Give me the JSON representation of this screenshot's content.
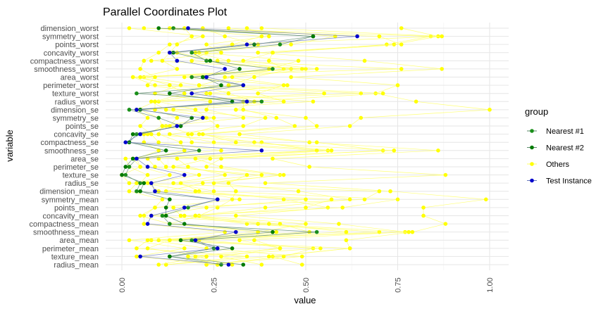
{
  "chart_data": {
    "type": "line",
    "title": "Parallel Coordinates Plot",
    "xlabel": "value",
    "ylabel": "variable",
    "xlim": [
      0,
      1
    ],
    "x_ticks": [
      "0.00",
      "0.25",
      "0.50",
      "0.75",
      "1.00"
    ],
    "grid": true,
    "legend_placement": "right",
    "legend_title": "group",
    "variables": [
      "dimension_worst",
      "symmetry_worst",
      "points_worst",
      "concavity_worst",
      "compactness_worst",
      "smoothness_worst",
      "area_worst",
      "perimeter_worst",
      "texture_worst",
      "radius_worst",
      "dimension_se",
      "symmetry_se",
      "points_se",
      "concavity_se",
      "compactness_se",
      "smoothness_se",
      "area_se",
      "perimeter_se",
      "texture_se",
      "radius_se",
      "dimension_mean",
      "symmetry_mean",
      "points_mean",
      "concavity_mean",
      "compactness_mean",
      "smoothness_mean",
      "area_mean",
      "perimeter_mean",
      "texture_mean",
      "radius_mean"
    ],
    "series": [
      {
        "name": "Nearest #1",
        "color": "#1a8f1a",
        "values": [
          0.14,
          0.52,
          0.43,
          0.19,
          0.23,
          0.41,
          0.19,
          0.33,
          0.04,
          0.38,
          0.02,
          0.1,
          0.16,
          0.04,
          0.02,
          0.21,
          0.04,
          0.02,
          0.01,
          0.05,
          0.04,
          0.26,
          0.18,
          0.11,
          0.13,
          0.53,
          0.19,
          0.25,
          0.13,
          0.27
        ]
      },
      {
        "name": "Nearest #2",
        "color": "#007a00",
        "values": [
          0.1,
          0.52,
          0.36,
          0.14,
          0.24,
          0.32,
          0.22,
          0.27,
          0.13,
          0.3,
          0.05,
          0.19,
          0.16,
          0.03,
          0.02,
          0.12,
          0.03,
          0.01,
          0.0,
          0.06,
          0.05,
          0.13,
          0.12,
          0.12,
          0.17,
          0.41,
          0.16,
          0.3,
          0.13,
          0.33
        ]
      },
      {
        "name": "Test Instance",
        "color": "#0000cc",
        "values": [
          0.18,
          0.64,
          0.34,
          0.13,
          0.15,
          0.28,
          0.23,
          0.33,
          0.19,
          0.34,
          0.04,
          0.22,
          0.15,
          0.05,
          0.01,
          0.38,
          0.04,
          0.07,
          0.17,
          0.08,
          0.09,
          0.26,
          0.17,
          0.08,
          0.07,
          0.31,
          0.2,
          0.26,
          0.05,
          0.29
        ]
      }
    ],
    "others": {
      "name": "Others",
      "color": "#ffff00",
      "values": [
        [
          0.14,
          0.84,
          0.72,
          0.41,
          0.4,
          0.44,
          0.28,
          0.45,
          0.23,
          0.52,
          0.14,
          0.39,
          0.33,
          0.13,
          0.25,
          0.56,
          0.1,
          0.12,
          0.38,
          0.16,
          0.21,
          0.44,
          0.56,
          0.31,
          0.59,
          0.77,
          0.32,
          0.43,
          0.27,
          0.38
        ],
        [
          0.76,
          0.86,
          0.74,
          0.37,
          0.66,
          0.87,
          0.46,
          0.75,
          0.69,
          0.8,
          1.0,
          0.65,
          0.62,
          0.32,
          0.51,
          0.86,
          0.41,
          0.51,
          0.88,
          0.39,
          0.73,
          0.99,
          0.82,
          0.82,
          0.88,
          0.79,
          0.61,
          0.62,
          0.41,
          0.49
        ],
        [
          0.38,
          0.87,
          0.3,
          0.23,
          0.19,
          0.5,
          0.06,
          0.21,
          0.65,
          0.1,
          0.2,
          0.23,
          0.26,
          0.18,
          0.19,
          0.53,
          0.03,
          0.05,
          0.0,
          0.02,
          0.7,
          0.66,
          0.14,
          0.16,
          0.43,
          0.51,
          0.08,
          0.23,
          0.49,
          0.23
        ],
        [
          0.29,
          0.58,
          0.46,
          0.21,
          0.48,
          0.4,
          0.17,
          0.44,
          0.37,
          0.44,
          0.05,
          0.1,
          0.11,
          0.07,
          0.38,
          0.53,
          0.15,
          0.18,
          0.28,
          0.14,
          0.25,
          0.75,
          0.6,
          0.17,
          0.34,
          0.7,
          0.21,
          0.52,
          0.44,
          0.23
        ],
        [
          0.22,
          0.28,
          0.37,
          0.2,
          0.29,
          0.46,
          0.36,
          0.29,
          0.71,
          0.33,
          0.33,
          0.42,
          0.47,
          0.21,
          0.36,
          0.57,
          0.24,
          0.14,
          0.34,
          0.29,
          0.31,
          0.3,
          0.26,
          0.21,
          0.13,
          0.37,
          0.36,
          0.43,
          0.18,
          0.26
        ],
        [
          0.34,
          0.4,
          0.23,
          0.27,
          0.08,
          0.49,
          0.03,
          0.16,
          0.09,
          0.24,
          0.23,
          0.33,
          0.12,
          0.19,
          0.53,
          0.71,
          0.27,
          0.23,
          0.43,
          0.25,
          0.48,
          0.62,
          0.39,
          0.2,
          0.5,
          0.37,
          0.1,
          0.54,
          0.2,
          0.3
        ],
        [
          0.06,
          0.7,
          0.76,
          0.41,
          0.33,
          0.53,
          0.3,
          0.21,
          0.29,
          0.36,
          0.31,
          0.5,
          0.53,
          0.22,
          0.31,
          0.74,
          0.2,
          0.27,
          0.44,
          0.22,
          0.12,
          0.57,
          0.5,
          0.2,
          0.37,
          0.78,
          0.07,
          0.04,
          0.34,
          0.12
        ],
        [
          0.13,
          0.38,
          0.3,
          0.15,
          0.26,
          0.76,
          0.03,
          0.09,
          0.55,
          0.08,
          0.12,
          0.25,
          0.11,
          0.1,
          0.16,
          0.17,
          0.07,
          0.09,
          0.21,
          0.07,
          0.1,
          0.5,
          0.23,
          0.08,
          0.4,
          0.61,
          0.13,
          0.62,
          0.4,
          0.12
        ],
        [
          0.02,
          0.22,
          0.13,
          0.1,
          0.06,
          0.05,
          0.09,
          0.07,
          0.24,
          0.09,
          0.04,
          0.07,
          0.05,
          0.08,
          0.1,
          0.27,
          0.01,
          0.02,
          0.07,
          0.05,
          0.2,
          0.32,
          0.09,
          0.06,
          0.06,
          0.28,
          0.02,
          0.17,
          0.04,
          0.26
        ],
        [
          0.17,
          0.19,
          0.15,
          0.13,
          0.11,
          0.15,
          0.05,
          0.13,
          0.17,
          0.09,
          0.09,
          0.15,
          0.13,
          0.06,
          0.06,
          0.1,
          0.04,
          0.05,
          0.13,
          0.04,
          0.02,
          0.11,
          0.09,
          0.05,
          0.13,
          0.42,
          0.13,
          0.07,
          0.23,
          0.1
        ]
      ]
    }
  }
}
